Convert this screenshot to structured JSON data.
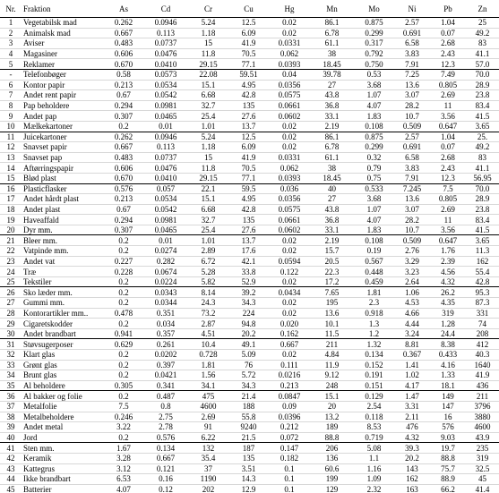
{
  "table": {
    "header": [
      "Nr.",
      "Fraktion",
      "As",
      "Cd",
      "Cr",
      "Cu",
      "Hg",
      "Mn",
      "Mo",
      "Ni",
      "Pb",
      "Zn"
    ],
    "rows": [
      [
        "1",
        "Vegetabilsk mad",
        "0.262",
        "0.0946",
        "5.24",
        "12.5",
        "0.02",
        "86.1",
        "0.875",
        "2.57",
        "1.04",
        "25"
      ],
      [
        "2",
        "Animalsk mad",
        "0.667",
        "0.113",
        "1.18",
        "6.09",
        "0.02",
        "6.78",
        "0.299",
        "0.691",
        "0.07",
        "49.2"
      ],
      [
        "3",
        "Aviser",
        "0.483",
        "0.0737",
        "15",
        "41.9",
        "0.0331",
        "61.1",
        "0.317",
        "6.58",
        "2.68",
        "83"
      ],
      [
        "4",
        "Magasiner",
        "0.606",
        "0.0476",
        "11.8",
        "70.5",
        "0.062",
        "38",
        "0.792",
        "3.83",
        "2.43",
        "41.1"
      ],
      [
        "5",
        "Reklamer",
        "0.670",
        "0.0410",
        "29.15",
        "77.1",
        "0.0393",
        "18.45",
        "0.750",
        "7.91",
        "12.3",
        "57.0"
      ],
      [
        "-",
        "Telefonbøger",
        "0.58",
        "0.0573",
        "22.08",
        "59.51",
        "0.04",
        "39.78",
        "0.53",
        "7.25",
        "7.49",
        "70.0"
      ],
      [
        "6",
        "Kontor papir",
        "0.213",
        "0.0534",
        "15.1",
        "4.95",
        "0.0356",
        "27",
        "3.68",
        "13.6",
        "0.805",
        "28.9"
      ],
      [
        "7",
        "Andet rent papir",
        "0.67",
        "0.0542",
        "6.68",
        "42.8",
        "0.0575",
        "43.8",
        "1.07",
        "3.07",
        "2.69",
        "23.8"
      ],
      [
        "8",
        "Pap beholdere",
        "0.294",
        "0.0981",
        "32.7",
        "135",
        "0.0661",
        "36.8",
        "4.07",
        "28.2",
        "11",
        "83.4"
      ],
      [
        "9",
        "Andet pap",
        "0.307",
        "0.0465",
        "25.4",
        "27.6",
        "0.0602",
        "33.1",
        "1.83",
        "10.7",
        "3.56",
        "41.5"
      ],
      [
        "10",
        "Mælkekartoner",
        "0.2",
        "0.01",
        "1.01",
        "13.7",
        "0.02",
        "2.19",
        "0.108",
        "0.509",
        "0.647",
        "3.65"
      ],
      [
        "11",
        "Juicekartoner",
        "0.262",
        "0.0946",
        "5.24",
        "12.5",
        "0.02",
        "86.1",
        "0.875",
        "2.57",
        "1.04",
        "25."
      ],
      [
        "12",
        "Snavset papir",
        "0.667",
        "0.113",
        "1.18",
        "6.09",
        "0.02",
        "6.78",
        "0.299",
        "0.691",
        "0.07",
        "49.2"
      ],
      [
        "13",
        "Snavset pap",
        "0.483",
        "0.0737",
        "15",
        "41.9",
        "0.0331",
        "61.1",
        "0.32",
        "6.58",
        "2.68",
        "83"
      ],
      [
        "14",
        "Aftørringspapir",
        "0.606",
        "0.0476",
        "11.8",
        "70.5",
        "0.062",
        "38",
        "0.79",
        "3.83",
        "2.43",
        "41.1"
      ],
      [
        "15",
        "Blød plast",
        "0.670",
        "0.0410",
        "29.15",
        "77.1",
        "0.0393",
        "18.45",
        "0.75",
        "7.91",
        "12.3",
        "56.95"
      ],
      [
        "16",
        "Plasticflasker",
        "0.576",
        "0.057",
        "22.1",
        "59.5",
        "0.036",
        "40",
        "0.533",
        "7.245",
        "7.5",
        "70.0"
      ],
      [
        "17",
        "Andet hårdt plast",
        "0.213",
        "0.0534",
        "15.1",
        "4.95",
        "0.0356",
        "27",
        "3.68",
        "13.6",
        "0.805",
        "28.9"
      ],
      [
        "18",
        "Andet plast",
        "0.67",
        "0.0542",
        "6.68",
        "42.8",
        "0.0575",
        "43.8",
        "1.07",
        "3.07",
        "2.69",
        "23.8"
      ],
      [
        "19",
        "Haveaffald",
        "0.294",
        "0.0981",
        "32.7",
        "135",
        "0.0661",
        "36.8",
        "4.07",
        "28.2",
        "11",
        "83.4"
      ],
      [
        "20",
        "Dyr mm.",
        "0.307",
        "0.0465",
        "25.4",
        "27.6",
        "0.0602",
        "33.1",
        "1.83",
        "10.7",
        "3.56",
        "41.5"
      ],
      [
        "21",
        "Bleer mm.",
        "0.2",
        "0.01",
        "1.01",
        "13.7",
        "0.02",
        "2.19",
        "0.108",
        "0.509",
        "0.647",
        "3.65"
      ],
      [
        "22",
        "Vatpinde mm.",
        "0.2",
        "0.0274",
        "2.89",
        "17.6",
        "0.02",
        "15.7",
        "0.19",
        "2.76",
        "1.76",
        "11.3"
      ],
      [
        "23",
        "Andet vat",
        "0.227",
        "0.282",
        "6.72",
        "42.1",
        "0.0594",
        "20.5",
        "0.567",
        "3.29",
        "2.39",
        "162"
      ],
      [
        "24",
        "Træ",
        "0.228",
        "0.0674",
        "5.28",
        "33.8",
        "0.122",
        "22.3",
        "0.448",
        "3.23",
        "4.56",
        "55.4"
      ],
      [
        "25",
        "Tekstiler",
        "0.2",
        "0.0224",
        "5.82",
        "52.9",
        "0.02",
        "17.2",
        "0.459",
        "2.64",
        "4.32",
        "42.8"
      ],
      [
        "26",
        "Sko læder mm.",
        "0.2",
        "0.0343",
        "8.14",
        "39.2",
        "0.0434",
        "7.65",
        "1.81",
        "1.06",
        "26.2",
        "95.3"
      ],
      [
        "27",
        "Gummi mm.",
        "0.2",
        "0.0344",
        "24.3",
        "34.3",
        "0.02",
        "195",
        "2.3",
        "4.53",
        "4.35",
        "87.3"
      ],
      [
        "28",
        "Kontorartikler mm..",
        "0.478",
        "0.351",
        "73.2",
        "224",
        "0.02",
        "13.6",
        "0.918",
        "4.66",
        "319",
        "331"
      ],
      [
        "29",
        "Cigaretskodder",
        "0.2",
        "0.034",
        "2.87",
        "94.8",
        "0.020",
        "10.1",
        "1.3",
        "4.44",
        "1.28",
        "74"
      ],
      [
        "30",
        "Andet brandbart",
        "0.941",
        "0.357",
        "4.51",
        "20.2",
        "0.162",
        "11.5",
        "1.2",
        "3.24",
        "24.4",
        "208"
      ],
      [
        "31",
        "Støvsugerposer",
        "0.629",
        "0.261",
        "10.4",
        "49.1",
        "0.667",
        "211",
        "1.32",
        "8.81",
        "8.38",
        "412"
      ],
      [
        "32",
        "Klart glas",
        "0.2",
        "0.0202",
        "0.728",
        "5.09",
        "0.02",
        "4.84",
        "0.134",
        "0.367",
        "0.433",
        "40.3"
      ],
      [
        "33",
        "Grønt glas",
        "0.2",
        "0.397",
        "1.81",
        "76",
        "0.111",
        "11.9",
        "0.152",
        "1.41",
        "4.16",
        "1640"
      ],
      [
        "34",
        "Brunt glas",
        "0.2",
        "0.0421",
        "1.56",
        "5.72",
        "0.0216",
        "9.12",
        "0.191",
        "1.02",
        "1.33",
        "41.9"
      ],
      [
        "35",
        "Al beholdere",
        "0.305",
        "0.341",
        "34.1",
        "34.3",
        "0.213",
        "248",
        "0.151",
        "4.17",
        "18.1",
        "436"
      ],
      [
        "36",
        "Al bakker og folie",
        "0.2",
        "0.487",
        "475",
        "21.4",
        "0.0847",
        "15.1",
        "0.129",
        "1.47",
        "149",
        "211"
      ],
      [
        "37",
        "Metalfolie",
        "7.5",
        "0.8",
        "4600",
        "188",
        "0.09",
        "20",
        "2.54",
        "3.31",
        "147",
        "3796"
      ],
      [
        "38",
        "Metalbeholdere",
        "0.246",
        "2.75",
        "2.69",
        "55.8",
        "0.0396",
        "13.2",
        "0.118",
        "2.11",
        "16",
        "3880"
      ],
      [
        "39",
        "Andet metal",
        "3.22",
        "2.78",
        "91",
        "9240",
        "0.212",
        "189",
        "8.53",
        "476",
        "576",
        "4600"
      ],
      [
        "40",
        "Jord",
        "0.2",
        "0.576",
        "6.22",
        "21.5",
        "0.072",
        "88.8",
        "0.719",
        "4.32",
        "9.03",
        "43.9"
      ],
      [
        "41",
        "Sten mm.",
        "1.67",
        "0.134",
        "132",
        "187",
        "0.147",
        "206",
        "5.08",
        "39.3",
        "19.7",
        "235"
      ],
      [
        "42",
        "Keramik",
        "3.28",
        "0.667",
        "35.4",
        "135",
        "0.182",
        "136",
        "1.1",
        "20.2",
        "88.8",
        "319"
      ],
      [
        "43",
        "Kattegrus",
        "3.12",
        "0.121",
        "37",
        "3.51",
        "0.1",
        "60.6",
        "1.16",
        "143",
        "75.7",
        "32.5"
      ],
      [
        "44",
        "Ikke brandbart",
        "6.53",
        "0.16",
        "1190",
        "14.3",
        "0.1",
        "199",
        "1.09",
        "162",
        "88.9",
        "45"
      ],
      [
        "45",
        "Batterier",
        "4.07",
        "0.12",
        "202",
        "12.9",
        "0.1",
        "129",
        "2.32",
        "163",
        "66.2",
        "41.4"
      ]
    ]
  }
}
